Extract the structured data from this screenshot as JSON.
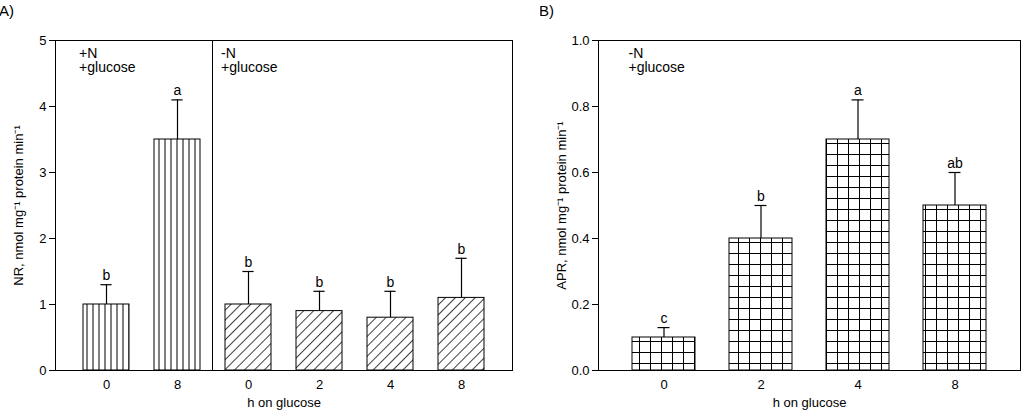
{
  "chart_data": [
    {
      "type": "bar",
      "title": "(A)",
      "categories": [
        "0",
        "8",
        "0",
        "2",
        "4",
        "8"
      ],
      "values": [
        1.0,
        3.5,
        1.0,
        0.9,
        0.8,
        1.1
      ],
      "errors": [
        0.3,
        0.6,
        0.5,
        0.3,
        0.4,
        0.6
      ],
      "letters": [
        "b",
        "a",
        "b",
        "b",
        "b",
        "b"
      ],
      "groups": [
        {
          "lines": [
            "+N",
            "+glucose"
          ],
          "bars": [
            0,
            1
          ]
        },
        {
          "lines": [
            "-N",
            "+glucose"
          ],
          "bars": [
            2,
            3,
            4,
            5
          ]
        }
      ],
      "x_label": "h on glucose",
      "y_label": "NR, nmol mg⁻¹ protein min⁻¹",
      "ylim": [
        0,
        5
      ],
      "yticks": [
        0,
        1,
        2,
        3,
        4,
        5
      ]
    },
    {
      "type": "bar",
      "title": "(B)",
      "categories": [
        "0",
        "2",
        "4",
        "8"
      ],
      "values": [
        0.1,
        0.4,
        0.7,
        0.5
      ],
      "errors": [
        0.03,
        0.1,
        0.12,
        0.1
      ],
      "letters": [
        "c",
        "b",
        "a",
        "ab"
      ],
      "groups": [
        {
          "lines": [
            "-N",
            "+glucose"
          ],
          "bars": [
            0,
            1,
            2,
            3
          ]
        }
      ],
      "x_label": "h on glucose",
      "y_label": "APR, nmol mg⁻¹ protein min⁻¹",
      "ylim": [
        0,
        1.0
      ],
      "yticks": [
        {
          "value": 0,
          "label": "0.0"
        },
        {
          "value": 0.2,
          "label": "0.2"
        },
        {
          "value": 0.4,
          "label": "0.4"
        },
        {
          "value": 0.6,
          "label": "0.6"
        },
        {
          "value": 0.8,
          "label": "0.8"
        },
        {
          "value": 1.0,
          "label": "1.0"
        }
      ]
    }
  ]
}
